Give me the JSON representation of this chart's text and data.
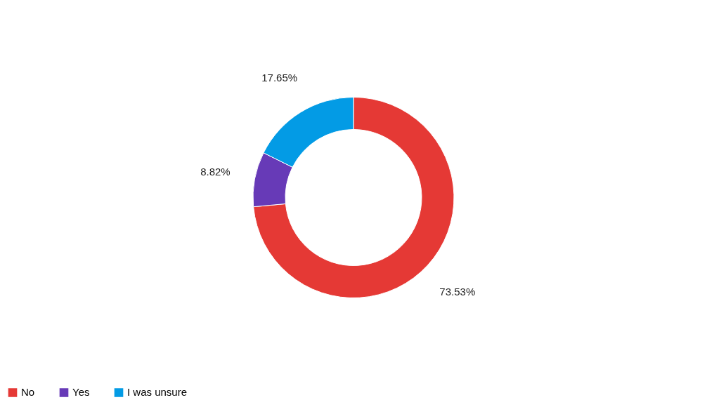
{
  "chart_data": {
    "type": "donut",
    "categories": [
      "No",
      "Yes",
      "I was unsure"
    ],
    "values": [
      73.53,
      8.82,
      17.65
    ],
    "colors": [
      "#e53935",
      "#673ab7",
      "#039be5"
    ],
    "value_labels": [
      "73.53%",
      "8.82%",
      "17.65%"
    ],
    "legend": "bottom"
  }
}
